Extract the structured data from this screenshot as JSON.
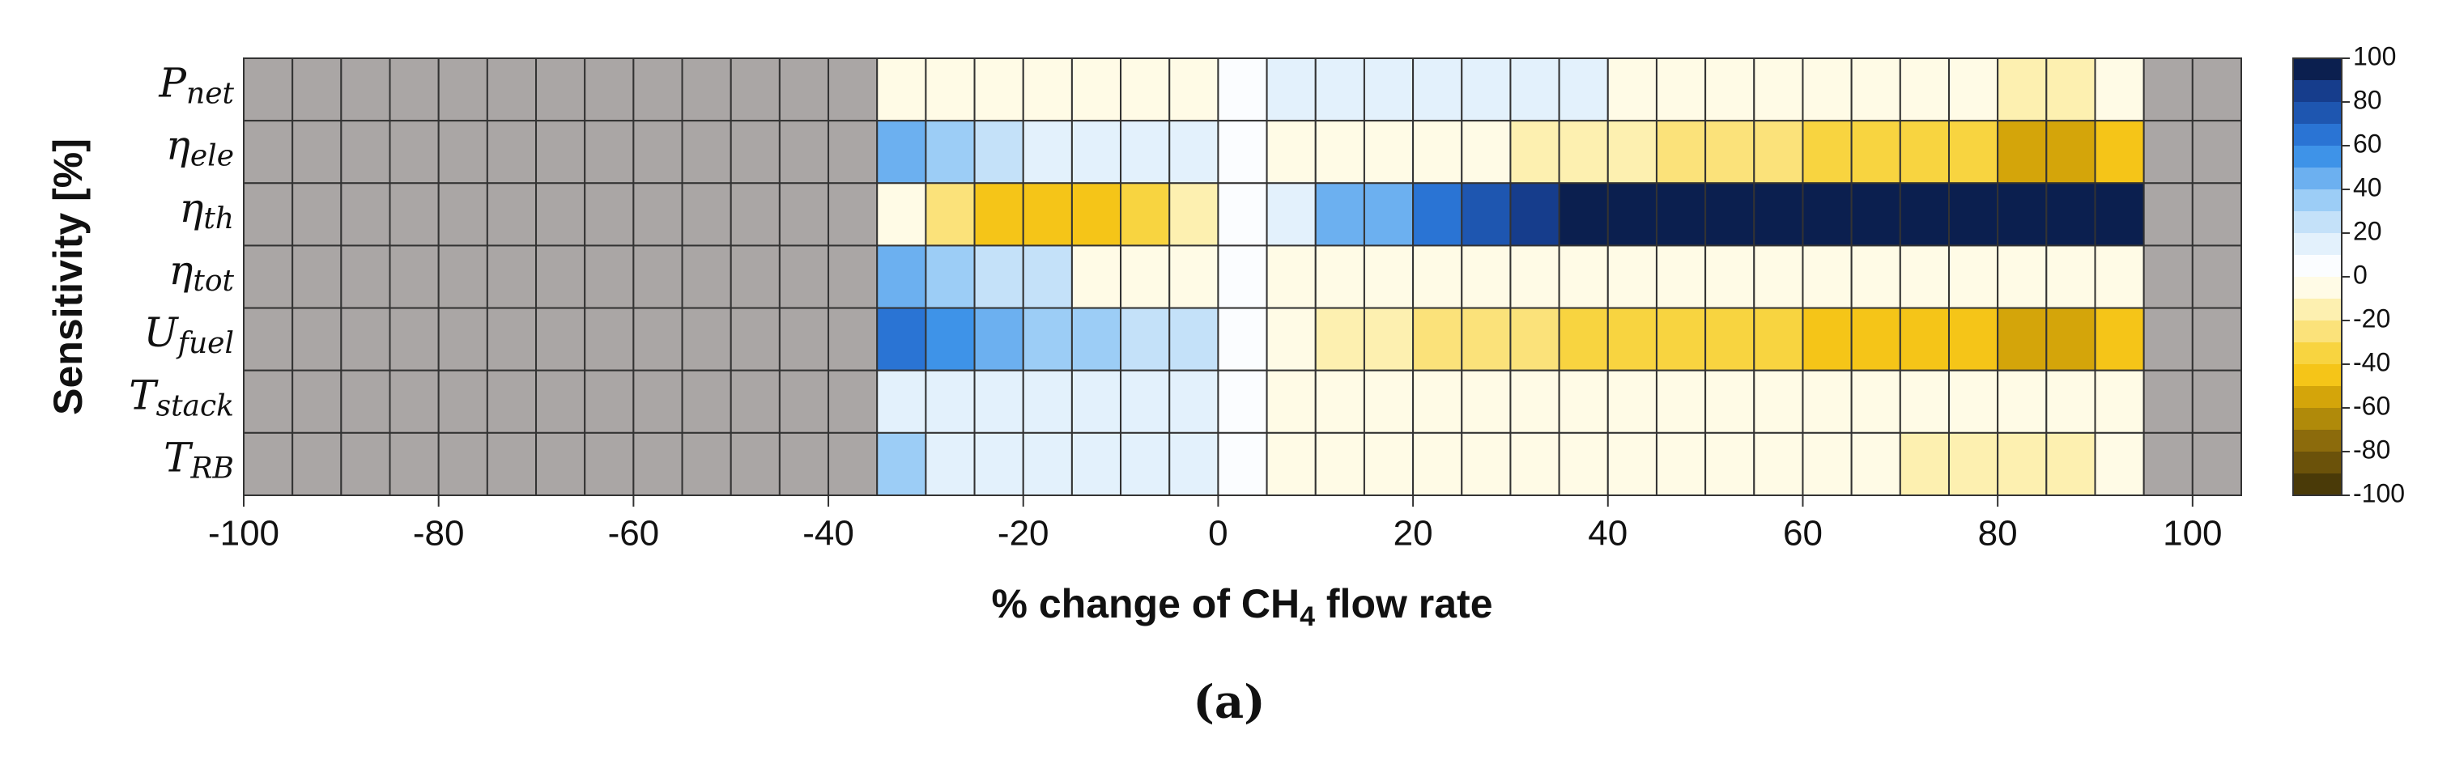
{
  "chart_data": {
    "type": "heatmap",
    "ylabel": "Sensitivity [%]",
    "xlabel": {
      "before": "% change of CH",
      "subscript": "4",
      "after": " flow rate"
    },
    "caption": "(a)",
    "rows": [
      {
        "symbol": "P",
        "subscript": "net"
      },
      {
        "symbol": "η",
        "subscript": "ele"
      },
      {
        "symbol": "η",
        "subscript": "th"
      },
      {
        "symbol": "η",
        "subscript": "tot"
      },
      {
        "symbol": "U",
        "subscript": "fuel"
      },
      {
        "symbol": "T",
        "subscript": "stack"
      },
      {
        "symbol": "T",
        "subscript": "RB"
      }
    ],
    "x": [
      -100,
      -95,
      -90,
      -85,
      -80,
      -75,
      -70,
      -65,
      -60,
      -55,
      -50,
      -45,
      -40,
      -35,
      -30,
      -25,
      -20,
      -15,
      -10,
      -5,
      0,
      5,
      10,
      15,
      20,
      25,
      30,
      35,
      40,
      45,
      50,
      55,
      60,
      65,
      70,
      75,
      80,
      85,
      90,
      95,
      100
    ],
    "xlim": [
      -100,
      105
    ],
    "xticks": [
      -100,
      -80,
      -60,
      -40,
      -20,
      0,
      20,
      40,
      60,
      80,
      100
    ],
    "values": [
      [
        null,
        null,
        null,
        null,
        null,
        null,
        null,
        null,
        null,
        null,
        null,
        null,
        null,
        -5,
        -5,
        -5,
        -5,
        -5,
        -5,
        -5,
        0,
        15,
        15,
        15,
        15,
        15,
        15,
        15,
        -5,
        -5,
        -5,
        -5,
        -5,
        -5,
        -5,
        -5,
        -15,
        -15,
        -5,
        null,
        null
      ],
      [
        null,
        null,
        null,
        null,
        null,
        null,
        null,
        null,
        null,
        null,
        null,
        null,
        null,
        45,
        35,
        25,
        15,
        15,
        15,
        15,
        0,
        -5,
        -5,
        -5,
        -5,
        -5,
        -15,
        -15,
        -15,
        -25,
        -25,
        -25,
        -35,
        -35,
        -35,
        -35,
        -55,
        -55,
        -45,
        null,
        null
      ],
      [
        null,
        null,
        null,
        null,
        null,
        null,
        null,
        null,
        null,
        null,
        null,
        null,
        null,
        -5,
        -25,
        -45,
        -45,
        -45,
        -35,
        -15,
        0,
        15,
        45,
        45,
        65,
        75,
        85,
        100,
        100,
        100,
        100,
        100,
        100,
        100,
        100,
        100,
        100,
        100,
        100,
        null,
        null
      ],
      [
        null,
        null,
        null,
        null,
        null,
        null,
        null,
        null,
        null,
        null,
        null,
        null,
        null,
        45,
        35,
        25,
        25,
        -5,
        -5,
        -5,
        0,
        -5,
        -5,
        -5,
        -5,
        -5,
        -5,
        -5,
        -5,
        -5,
        -5,
        -5,
        -5,
        -5,
        -5,
        -5,
        -5,
        -5,
        -5,
        null,
        null
      ],
      [
        null,
        null,
        null,
        null,
        null,
        null,
        null,
        null,
        null,
        null,
        null,
        null,
        null,
        65,
        55,
        45,
        35,
        35,
        25,
        25,
        0,
        -5,
        -15,
        -15,
        -25,
        -25,
        -25,
        -35,
        -35,
        -35,
        -35,
        -35,
        -45,
        -45,
        -45,
        -45,
        -55,
        -55,
        -45,
        null,
        null
      ],
      [
        null,
        null,
        null,
        null,
        null,
        null,
        null,
        null,
        null,
        null,
        null,
        null,
        null,
        15,
        15,
        15,
        15,
        15,
        15,
        15,
        0,
        -5,
        -5,
        -5,
        -5,
        -5,
        -5,
        -5,
        -5,
        -5,
        -5,
        -5,
        -5,
        -5,
        -5,
        -5,
        -5,
        -5,
        -5,
        null,
        null
      ],
      [
        null,
        null,
        null,
        null,
        null,
        null,
        null,
        null,
        null,
        null,
        null,
        null,
        null,
        35,
        15,
        15,
        15,
        15,
        15,
        15,
        0,
        -5,
        -5,
        -5,
        -5,
        -5,
        -5,
        -5,
        -5,
        -5,
        -5,
        -5,
        -5,
        -5,
        -15,
        -15,
        -15,
        -15,
        -5,
        null,
        null
      ]
    ],
    "missing_color": "#aaa6a5",
    "zlim": [
      -100,
      100
    ],
    "zticks": [
      -100,
      -80,
      -60,
      -40,
      -20,
      0,
      20,
      40,
      60,
      80,
      100
    ],
    "colors": [
      "#4a3a08",
      "#6b520a",
      "#8c6b0c",
      "#b08a0a",
      "#d4a50a",
      "#f5c518",
      "#f8d440",
      "#fbe27a",
      "#fdf0b0",
      "#fffbe6",
      "#fbfdff",
      "#e3f1fc",
      "#c4e1f9",
      "#9ccdf6",
      "#6cb0f0",
      "#3e93e8",
      "#2a74d4",
      "#1e56b0",
      "#163d8c",
      "#0b1f4f"
    ]
  }
}
